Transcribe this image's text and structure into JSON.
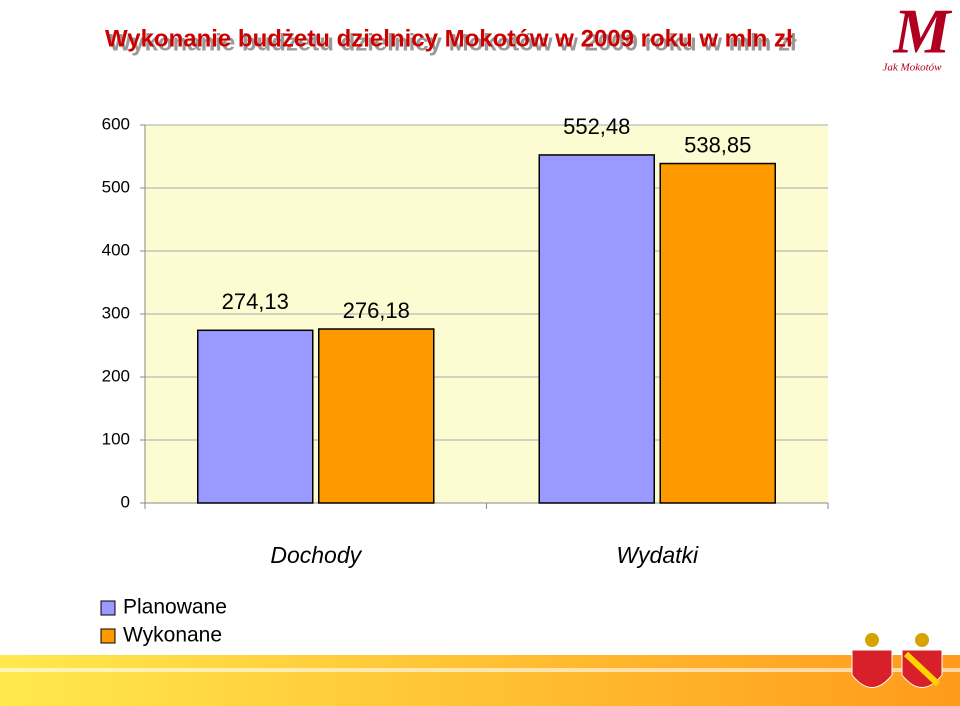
{
  "chart_data": {
    "type": "bar",
    "title": "Wykonanie budżetu dzielnicy Mokotów w 2009 roku w mln zł",
    "categories": [
      "Dochody",
      "Wydatki"
    ],
    "series": [
      {
        "name": "Planowane",
        "color": "#9999ff",
        "values": [
          274.13,
          552.48
        ],
        "value_labels": [
          "274,13",
          "552,48"
        ]
      },
      {
        "name": "Wykonane",
        "color": "#ff9900",
        "values": [
          276.18,
          538.85
        ],
        "value_labels": [
          "276,18",
          "538,85"
        ]
      }
    ],
    "ylim": [
      0,
      600
    ],
    "yticks": [
      0,
      100,
      200,
      300,
      400,
      500,
      600
    ],
    "grid": true,
    "legend": "bottom-left"
  },
  "logo": {
    "letter": "M",
    "text": "Jak Mokotów"
  }
}
